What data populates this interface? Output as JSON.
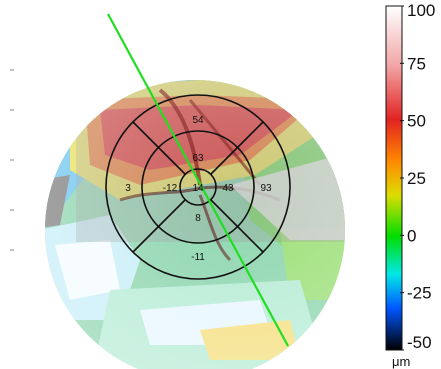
{
  "chart_data": {
    "type": "heatmap",
    "title": "",
    "colorbar": {
      "ticks": [
        "100",
        "75",
        "50",
        "25",
        "0",
        "-25",
        "-50"
      ],
      "unit": "μm",
      "range": [
        -50,
        100
      ]
    },
    "grid_sectors": [
      {
        "id": "center",
        "value": "14"
      },
      {
        "id": "inner-superior",
        "value": "63"
      },
      {
        "id": "inner-temporal",
        "value": "-12"
      },
      {
        "id": "inner-nasal",
        "value": "43"
      },
      {
        "id": "inner-inferior",
        "value": "8"
      },
      {
        "id": "outer-superior",
        "value": "54"
      },
      {
        "id": "outer-temporal",
        "value": "3"
      },
      {
        "id": "outer-nasal",
        "value": "93"
      },
      {
        "id": "outer-inferior",
        "value": "-11"
      }
    ]
  }
}
